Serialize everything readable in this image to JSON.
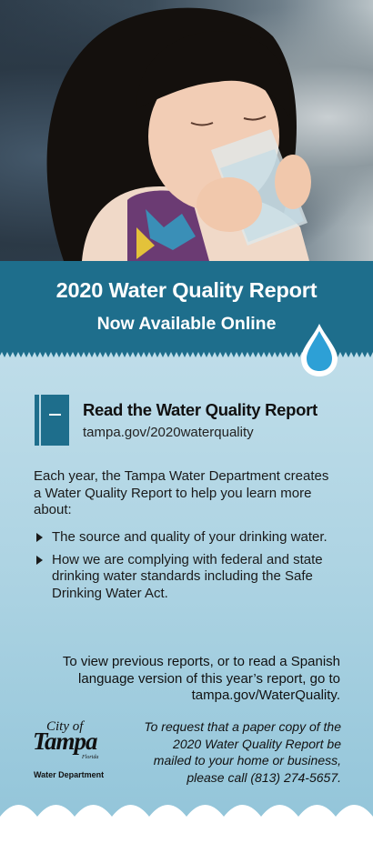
{
  "header": {
    "title": "2020 Water Quality Report",
    "subtitle": "Now Available Online"
  },
  "report_link": {
    "title": "Read the Water Quality Report",
    "url": "tampa.gov/2020waterquality"
  },
  "intro": "Each year, the Tampa Water Department creates a Water Quality Report to help you learn more about:",
  "bullets": [
    "The source and quality of your drinking water.",
    "How we are complying with federal and state drinking water standards including the Safe Drinking Water Act."
  ],
  "previous_reports": "To view previous reports, or to read a Spanish language version of this year’s report, go to tampa.gov/WaterQuality.",
  "paper_copy": "To request that a paper copy of the 2020 Water Quality Report be mailed to your home or business, please call  (813) 274-5657.",
  "logo": {
    "city": "City of",
    "name": "Tampa",
    "state": "Florida",
    "department": "Water Department"
  },
  "colors": {
    "banner": "#1e6e8c",
    "drop": "#2da0d6",
    "background": "#c6e1ec"
  },
  "icons": [
    "water-drop-icon",
    "book-icon"
  ]
}
